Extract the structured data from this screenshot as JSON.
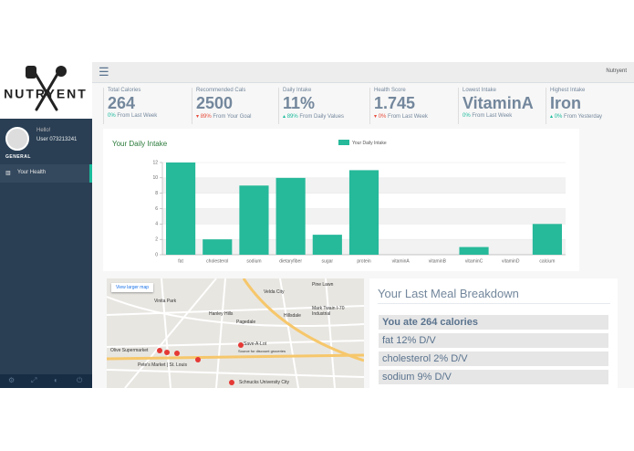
{
  "brand": "NUTRYENT",
  "topbar": {
    "user": "Nutryent"
  },
  "sidebar": {
    "greeting": "Hello!",
    "user": "User 073213241",
    "section": "GENERAL",
    "menu": [
      "Your Health"
    ]
  },
  "stats": [
    {
      "label": "Total Calories",
      "value": "264",
      "change": "0%",
      "note": "From Last Week"
    },
    {
      "label": "Recommended Cals",
      "value": "2500",
      "change": "89%",
      "note": "From Your Goal",
      "dir": "down"
    },
    {
      "label": "Daily Intake",
      "value": "11%",
      "change": "89%",
      "note": "From Daily Values",
      "dir": "up"
    },
    {
      "label": "Health Score",
      "value": "1.745",
      "change": "0%",
      "note": "From Last Week",
      "dir": "down"
    },
    {
      "label": "Lowest Intake",
      "value": "VitaminA",
      "change": "0%",
      "note": "From Last Week"
    },
    {
      "label": "Highest Intake",
      "value": "Iron",
      "change": "0%",
      "note": "From Yesterday",
      "dir": "up"
    }
  ],
  "chart_data": {
    "type": "bar",
    "title": "Your Daily Intake",
    "categories": [
      "fat",
      "cholesterol",
      "sodium",
      "dietaryfiber",
      "sugar",
      "protein",
      "vitaminA",
      "vitaminB",
      "vitaminC",
      "vitaminD",
      "calcium"
    ],
    "series": [
      {
        "name": "Your Daily Intake",
        "color": "#26b99a",
        "values": [
          12,
          2,
          9,
          10,
          2.6,
          11,
          0,
          0,
          1,
          0,
          4
        ]
      }
    ],
    "ylim": [
      0,
      12
    ],
    "yticks": [
      0,
      2,
      4,
      6,
      8,
      10,
      12
    ],
    "grid": true,
    "legend": "top"
  },
  "map": {
    "button": "View larger map",
    "labels": [
      "Velda City",
      "Pine Lawn",
      "Vinita Park",
      "Hanley Hills",
      "Pagedale",
      "Hillsdale",
      "Mark Twain I-70 Industrial",
      "Olive Supermarket",
      "Save-A-Lot",
      "Source for discount groceries",
      "Pete's Market | St. Louis",
      "Schnucks University City"
    ]
  },
  "meal": {
    "title": "Your Last Meal Breakdown",
    "items": [
      "You ate 264 calories",
      "fat 12% D/V",
      "cholesterol 2% D/V",
      "sodium 9% D/V"
    ]
  }
}
